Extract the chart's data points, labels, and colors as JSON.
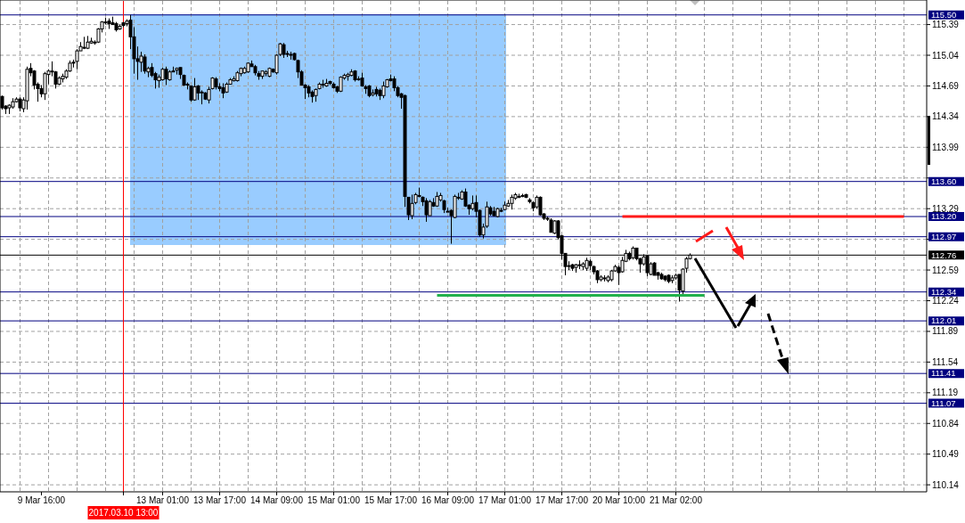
{
  "chart_data": {
    "type": "candlestick",
    "color": "#000000",
    "categories": [
      null,
      null,
      null,
      null,
      null,
      null,
      null,
      null,
      null,
      null,
      null,
      "9 Mar 16:00",
      null,
      null,
      null,
      null,
      null,
      null,
      null,
      null,
      null,
      null,
      null,
      null,
      null,
      null,
      null,
      null,
      null,
      null,
      null,
      null,
      null,
      null,
      "2017.03.10 13:00",
      null,
      null,
      null,
      null,
      null,
      null,
      null,
      null,
      null,
      null,
      "13 Mar 01:00",
      null,
      null,
      null,
      null,
      null,
      null,
      null,
      null,
      null,
      null,
      null,
      null,
      null,
      null,
      null,
      "13 Mar 17:00",
      null,
      null,
      null,
      null,
      null,
      null,
      null,
      null,
      null,
      null,
      null,
      null,
      null,
      null,
      null,
      "14 Mar 09:00",
      null,
      null,
      null,
      null,
      null,
      null,
      null,
      null,
      null,
      null,
      null,
      null,
      null,
      null,
      null,
      "15 Mar 01:00",
      null,
      null,
      null,
      null,
      null,
      null,
      null,
      null,
      null,
      null,
      null,
      null,
      null,
      null,
      null,
      "15 Mar 17:00",
      null,
      null,
      null,
      null,
      null,
      null,
      null,
      null,
      null,
      null,
      null,
      null,
      null,
      null,
      null,
      "16 Mar 09:00",
      null,
      null,
      null,
      null,
      null,
      null,
      null,
      null,
      null,
      null,
      null,
      null,
      null,
      null,
      null,
      "17 Mar 01:00",
      null,
      null,
      null,
      null,
      null,
      null,
      null,
      null,
      null,
      null,
      null,
      null,
      null,
      null,
      null,
      "17 Mar 17:00",
      null,
      null,
      null,
      null,
      null,
      null,
      null,
      null,
      null,
      null,
      null,
      null,
      null,
      null,
      null,
      "20 Mar 10:00",
      null,
      null,
      null,
      null,
      null,
      null,
      null,
      null,
      null,
      null,
      null,
      null,
      null,
      null,
      null,
      "21 Mar 02:00",
      null,
      null,
      null,
      null,
      null,
      null,
      null,
      null,
      null,
      null,
      null,
      null,
      null,
      null,
      null,
      null,
      null,
      null,
      null,
      null,
      null,
      null,
      null,
      null,
      null,
      null,
      null,
      null,
      null,
      null,
      null,
      null,
      null,
      null,
      null,
      null,
      null,
      null,
      null,
      null,
      null,
      null,
      null,
      null,
      null,
      null,
      null,
      null,
      null,
      null,
      null,
      null,
      null,
      null,
      null,
      null,
      null,
      null,
      null,
      null,
      null,
      null,
      null,
      null,
      null,
      null,
      null,
      null,
      null,
      null
    ],
    "ohlc": [
      [
        114.57,
        114.58,
        114.42,
        114.44
      ],
      [
        114.46,
        114.47,
        114.37,
        114.43
      ],
      [
        114.44,
        114.48,
        114.37,
        114.47
      ],
      [
        114.45,
        114.55,
        114.43,
        114.51
      ],
      [
        114.51,
        114.56,
        114.5,
        114.54
      ],
      [
        114.54,
        114.56,
        114.4,
        114.44
      ],
      [
        114.43,
        114.56,
        114.39,
        114.53
      ],
      [
        114.52,
        114.91,
        114.42,
        114.88
      ],
      [
        114.89,
        114.95,
        114.8,
        114.84
      ],
      [
        114.86,
        114.87,
        114.65,
        114.7
      ],
      [
        114.71,
        114.73,
        114.51,
        114.66
      ],
      [
        114.66,
        114.7,
        114.56,
        114.6
      ],
      [
        114.6,
        114.85,
        114.53,
        114.83
      ],
      [
        114.82,
        114.88,
        114.71,
        114.86
      ],
      [
        114.86,
        114.97,
        114.8,
        114.86
      ],
      [
        114.85,
        114.86,
        114.66,
        114.71
      ],
      [
        114.71,
        114.8,
        114.7,
        114.78
      ],
      [
        114.77,
        114.83,
        114.73,
        114.8
      ],
      [
        114.79,
        114.88,
        114.77,
        114.86
      ],
      [
        114.86,
        114.98,
        114.85,
        114.95
      ],
      [
        114.96,
        114.99,
        114.9,
        114.95
      ],
      [
        114.97,
        115.11,
        114.88,
        115.09
      ],
      [
        115.09,
        115.19,
        115.09,
        115.14
      ],
      [
        115.13,
        115.25,
        115.11,
        115.13
      ],
      [
        115.12,
        115.26,
        115.11,
        115.19
      ],
      [
        115.18,
        115.24,
        115.17,
        115.2
      ],
      [
        115.19,
        115.21,
        115.16,
        115.19
      ],
      [
        115.19,
        115.35,
        115.18,
        115.34
      ],
      [
        115.34,
        115.43,
        115.3,
        115.42
      ],
      [
        115.41,
        115.47,
        115.39,
        115.42
      ],
      [
        115.43,
        115.46,
        115.34,
        115.4
      ],
      [
        115.41,
        115.48,
        115.39,
        115.39
      ],
      [
        115.4,
        115.42,
        115.31,
        115.33
      ],
      [
        115.34,
        115.39,
        115.33,
        115.37
      ],
      [
        115.41,
        115.42,
        115.36,
        115.38
      ],
      [
        115.4,
        115.45,
        115.37,
        115.43
      ],
      [
        115.44,
        115.5,
        115.11,
        115.25
      ],
      [
        115.25,
        115.36,
        114.83,
        115.0
      ],
      [
        115.0,
        115.14,
        114.76,
        114.97
      ],
      [
        114.96,
        115.08,
        114.85,
        115.03
      ],
      [
        115.02,
        115.05,
        114.83,
        114.86
      ],
      [
        114.85,
        114.91,
        114.79,
        114.89
      ],
      [
        114.9,
        114.95,
        114.79,
        114.81
      ],
      [
        114.83,
        114.85,
        114.66,
        114.76
      ],
      [
        114.75,
        114.82,
        114.67,
        114.79
      ],
      [
        114.76,
        114.9,
        114.75,
        114.88
      ],
      [
        114.88,
        114.91,
        114.7,
        114.77
      ],
      [
        114.76,
        114.87,
        114.75,
        114.85
      ],
      [
        114.86,
        114.91,
        114.85,
        114.85
      ],
      [
        114.87,
        114.9,
        114.82,
        114.89
      ],
      [
        114.9,
        114.9,
        114.77,
        114.82
      ],
      [
        114.81,
        114.82,
        114.69,
        114.7
      ],
      [
        114.71,
        114.73,
        114.65,
        114.7
      ],
      [
        114.69,
        114.69,
        114.51,
        114.53
      ],
      [
        114.53,
        114.78,
        114.52,
        114.68
      ],
      [
        114.69,
        114.7,
        114.53,
        114.61
      ],
      [
        114.62,
        114.64,
        114.48,
        114.62
      ],
      [
        114.61,
        114.62,
        114.53,
        114.54
      ],
      [
        114.53,
        114.68,
        114.49,
        114.65
      ],
      [
        114.66,
        114.79,
        114.65,
        114.78
      ],
      [
        114.77,
        114.79,
        114.65,
        114.68
      ],
      [
        114.68,
        114.72,
        114.63,
        114.66
      ],
      [
        114.67,
        114.72,
        114.55,
        114.61
      ],
      [
        114.62,
        114.73,
        114.61,
        114.71
      ],
      [
        114.71,
        114.78,
        114.71,
        114.76
      ],
      [
        114.75,
        114.8,
        114.74,
        114.77
      ],
      [
        114.75,
        114.86,
        114.74,
        114.84
      ],
      [
        114.83,
        114.9,
        114.8,
        114.89
      ],
      [
        114.84,
        114.91,
        114.83,
        114.89
      ],
      [
        114.85,
        114.96,
        114.84,
        114.95
      ],
      [
        114.94,
        114.98,
        114.91,
        114.91
      ],
      [
        114.91,
        114.93,
        114.81,
        114.84
      ],
      [
        114.83,
        114.86,
        114.76,
        114.8
      ],
      [
        114.8,
        114.86,
        114.77,
        114.86
      ],
      [
        114.83,
        114.87,
        114.8,
        114.85
      ],
      [
        114.8,
        114.9,
        114.79,
        114.89
      ],
      [
        114.88,
        114.89,
        114.84,
        114.85
      ],
      [
        114.84,
        115.05,
        114.82,
        115.04
      ],
      [
        115.05,
        115.18,
        115.03,
        115.17
      ],
      [
        115.16,
        115.18,
        115.01,
        115.05
      ],
      [
        115.06,
        115.09,
        115.02,
        115.05
      ],
      [
        115.05,
        115.08,
        114.99,
        115.05
      ],
      [
        115.06,
        115.07,
        114.98,
        114.99
      ],
      [
        114.98,
        114.99,
        114.78,
        114.85
      ],
      [
        114.85,
        114.87,
        114.7,
        114.7
      ],
      [
        114.7,
        114.71,
        114.54,
        114.67
      ],
      [
        114.68,
        114.7,
        114.56,
        114.61
      ],
      [
        114.62,
        114.64,
        114.5,
        114.57
      ],
      [
        114.58,
        114.66,
        114.51,
        114.65
      ],
      [
        114.66,
        114.73,
        114.65,
        114.71
      ],
      [
        114.7,
        114.76,
        114.67,
        114.71
      ],
      [
        114.69,
        114.77,
        114.68,
        114.72
      ],
      [
        114.74,
        114.75,
        114.7,
        114.72
      ],
      [
        114.71,
        114.73,
        114.66,
        114.67
      ],
      [
        114.68,
        114.69,
        114.61,
        114.63
      ],
      [
        114.63,
        114.8,
        114.62,
        114.79
      ],
      [
        114.78,
        114.83,
        114.76,
        114.81
      ],
      [
        114.8,
        114.84,
        114.75,
        114.82
      ],
      [
        114.81,
        114.88,
        114.8,
        114.85
      ],
      [
        114.86,
        114.87,
        114.74,
        114.76
      ],
      [
        114.77,
        114.8,
        114.75,
        114.77
      ],
      [
        114.78,
        114.84,
        114.68,
        114.69
      ],
      [
        114.68,
        114.7,
        114.6,
        114.66
      ],
      [
        114.69,
        114.7,
        114.56,
        114.58
      ],
      [
        114.59,
        114.65,
        114.57,
        114.61
      ],
      [
        114.65,
        114.68,
        114.57,
        114.6
      ],
      [
        114.64,
        114.66,
        114.53,
        114.58
      ],
      [
        114.58,
        114.74,
        114.55,
        114.69
      ],
      [
        114.68,
        114.77,
        114.67,
        114.76
      ],
      [
        114.77,
        114.82,
        114.74,
        114.75
      ],
      [
        114.77,
        114.8,
        114.63,
        114.67
      ],
      [
        114.67,
        114.69,
        114.56,
        114.58
      ],
      [
        114.6,
        114.61,
        114.43,
        114.56
      ],
      [
        114.58,
        114.59,
        113.31,
        113.43
      ],
      [
        113.42,
        113.42,
        113.16,
        113.22
      ],
      [
        113.21,
        113.45,
        113.17,
        113.35
      ],
      [
        113.36,
        113.47,
        113.34,
        113.45
      ],
      [
        113.44,
        113.53,
        113.42,
        113.44
      ],
      [
        113.42,
        113.43,
        113.32,
        113.37
      ],
      [
        113.38,
        113.41,
        113.14,
        113.22
      ],
      [
        113.21,
        113.39,
        113.21,
        113.37
      ],
      [
        113.36,
        113.41,
        113.31,
        113.32
      ],
      [
        113.32,
        113.48,
        113.31,
        113.43
      ],
      [
        113.39,
        113.47,
        113.37,
        113.44
      ],
      [
        113.38,
        113.39,
        113.24,
        113.28
      ],
      [
        113.26,
        113.3,
        113.25,
        113.26
      ],
      [
        113.27,
        113.28,
        112.89,
        113.21
      ],
      [
        113.19,
        113.45,
        113.18,
        113.43
      ],
      [
        113.42,
        113.47,
        113.39,
        113.42
      ],
      [
        113.4,
        113.5,
        113.39,
        113.48
      ],
      [
        113.48,
        113.52,
        113.31,
        113.32
      ],
      [
        113.33,
        113.34,
        113.22,
        113.29
      ],
      [
        113.29,
        113.44,
        113.27,
        113.35
      ],
      [
        113.36,
        113.44,
        113.19,
        113.26
      ],
      [
        113.27,
        113.28,
        112.97,
        112.99
      ],
      [
        112.99,
        113.12,
        112.95,
        113.08
      ],
      [
        113.09,
        113.37,
        113.07,
        113.31
      ],
      [
        113.3,
        113.32,
        113.21,
        113.23
      ],
      [
        113.26,
        113.31,
        113.2,
        113.21
      ],
      [
        113.2,
        113.3,
        113.19,
        113.29
      ],
      [
        113.27,
        113.3,
        113.25,
        113.27
      ],
      [
        113.28,
        113.37,
        113.27,
        113.33
      ],
      [
        113.32,
        113.39,
        113.31,
        113.35
      ],
      [
        113.35,
        113.45,
        113.28,
        113.42
      ],
      [
        113.41,
        113.47,
        113.39,
        113.45
      ],
      [
        113.43,
        113.46,
        113.41,
        113.43
      ],
      [
        113.44,
        113.46,
        113.42,
        113.44
      ],
      [
        113.45,
        113.46,
        113.41,
        113.42
      ],
      [
        113.39,
        113.41,
        113.35,
        113.37
      ],
      [
        113.36,
        113.37,
        113.26,
        113.3
      ],
      [
        113.31,
        113.44,
        113.29,
        113.42
      ],
      [
        113.42,
        113.43,
        113.21,
        113.22
      ],
      [
        113.23,
        113.24,
        113.16,
        113.18
      ],
      [
        113.18,
        113.2,
        113.15,
        113.18
      ],
      [
        113.16,
        113.18,
        113.02,
        113.02
      ],
      [
        113.01,
        113.16,
        113.0,
        113.15
      ],
      [
        113.15,
        113.16,
        112.94,
        112.96
      ],
      [
        112.98,
        112.99,
        112.71,
        112.78
      ],
      [
        112.78,
        112.78,
        112.53,
        112.63
      ],
      [
        112.64,
        112.69,
        112.59,
        112.64
      ],
      [
        112.65,
        112.66,
        112.58,
        112.61
      ],
      [
        112.62,
        112.66,
        112.56,
        112.65
      ],
      [
        112.65,
        112.7,
        112.6,
        112.65
      ],
      [
        112.63,
        112.68,
        112.59,
        112.66
      ],
      [
        112.61,
        112.73,
        112.58,
        112.7
      ],
      [
        112.69,
        112.71,
        112.59,
        112.64
      ],
      [
        112.63,
        112.64,
        112.54,
        112.57
      ],
      [
        112.58,
        112.59,
        112.44,
        112.48
      ],
      [
        112.48,
        112.53,
        112.46,
        112.51
      ],
      [
        112.5,
        112.53,
        112.46,
        112.5
      ],
      [
        112.47,
        112.53,
        112.45,
        112.51
      ],
      [
        112.48,
        112.59,
        112.46,
        112.58
      ],
      [
        112.58,
        112.65,
        112.57,
        112.63
      ],
      [
        112.62,
        112.64,
        112.42,
        112.56
      ],
      [
        112.57,
        112.74,
        112.56,
        112.7
      ],
      [
        112.69,
        112.82,
        112.68,
        112.78
      ],
      [
        112.78,
        112.8,
        112.7,
        112.72
      ],
      [
        112.73,
        112.86,
        112.71,
        112.84
      ],
      [
        112.84,
        112.84,
        112.7,
        112.72
      ],
      [
        112.72,
        112.73,
        112.56,
        112.66
      ],
      [
        112.66,
        112.77,
        112.64,
        112.74
      ],
      [
        112.75,
        112.76,
        112.52,
        112.56
      ],
      [
        112.54,
        112.68,
        112.53,
        112.66
      ],
      [
        112.67,
        112.68,
        112.53,
        112.53
      ],
      [
        112.56,
        112.57,
        112.48,
        112.53
      ],
      [
        112.54,
        112.56,
        112.48,
        112.49
      ],
      [
        112.52,
        112.53,
        112.46,
        112.48
      ],
      [
        112.53,
        112.54,
        112.44,
        112.46
      ],
      [
        112.47,
        112.53,
        112.44,
        112.5
      ],
      [
        112.5,
        112.55,
        112.48,
        112.53
      ],
      [
        112.54,
        112.54,
        112.23,
        112.36
      ],
      [
        112.35,
        112.61,
        112.31,
        112.6
      ],
      [
        112.61,
        112.74,
        112.56,
        112.72
      ],
      [
        112.72,
        112.78,
        112.71,
        112.76
      ],
      null,
      null,
      null,
      null,
      null,
      null,
      null,
      null,
      null,
      null,
      null,
      null,
      null,
      null,
      null,
      null,
      null,
      null,
      null,
      null,
      null,
      null,
      null,
      null,
      null,
      null,
      null,
      null,
      null,
      null,
      null,
      null,
      null,
      null,
      null,
      null,
      null,
      null,
      null,
      null,
      null,
      null,
      null,
      null,
      null,
      null,
      null,
      null,
      null,
      null,
      null,
      null,
      null,
      null,
      null,
      null,
      null,
      null,
      null,
      null,
      null,
      null,
      null,
      null,
      null,
      null
    ],
    "series": [
      {
        "type": "line",
        "color": "#ff1a1a",
        "values": [
          null,
          null,
          null,
          null,
          null,
          null,
          null,
          null,
          null,
          null,
          null,
          null,
          null,
          null,
          null,
          null,
          null,
          null,
          null,
          null,
          null,
          null,
          null,
          null,
          null,
          null,
          null,
          null,
          null,
          null,
          null,
          null,
          null,
          null,
          null,
          null,
          null,
          null,
          null,
          null,
          null,
          null,
          null,
          null,
          null,
          null,
          null,
          null,
          null,
          null,
          null,
          null,
          null,
          null,
          null,
          null,
          null,
          null,
          null,
          null,
          null,
          null,
          null,
          null,
          null,
          null,
          null,
          null,
          null,
          null,
          null,
          null,
          null,
          null,
          null,
          null,
          null,
          null,
          null,
          null,
          null,
          null,
          null,
          null,
          null,
          null,
          null,
          null,
          null,
          null,
          null,
          null,
          null,
          null,
          null,
          null,
          null,
          null,
          null,
          null,
          null,
          null,
          null,
          null,
          null,
          null,
          null,
          null,
          null,
          null,
          null,
          null,
          null,
          null,
          null,
          null,
          null,
          null,
          null,
          null,
          null,
          null,
          null,
          null,
          null,
          null,
          null,
          null,
          null,
          null,
          null,
          null,
          null,
          null,
          null,
          null,
          null,
          null,
          null,
          null,
          null,
          null,
          null,
          null,
          null,
          null,
          null,
          null,
          null,
          null,
          null,
          null,
          null,
          null,
          null,
          null,
          null,
          null,
          null,
          null,
          null,
          null,
          null,
          null,
          null,
          null,
          null,
          null,
          null,
          null,
          null,
          null,
          null,
          null,
          113.2,
          113.2,
          113.2,
          113.2,
          113.2,
          113.2,
          113.2,
          113.2,
          113.2,
          113.2,
          113.2,
          113.2,
          113.2,
          113.2,
          113.2,
          113.2,
          113.2,
          113.2,
          113.2,
          113.2,
          113.2,
          113.2,
          113.2,
          113.2,
          113.2,
          113.2,
          113.2,
          113.2,
          113.2,
          113.2,
          113.2,
          113.2,
          113.2,
          113.2,
          113.2,
          113.2,
          113.2,
          113.2,
          113.2,
          113.2,
          113.2,
          113.2,
          113.2,
          113.2,
          113.2,
          113.2,
          113.2,
          113.2,
          113.2,
          113.2,
          113.2,
          113.2,
          113.2,
          113.2,
          113.2,
          113.2,
          113.2,
          113.2,
          113.2,
          113.2,
          113.2,
          113.2,
          113.2,
          113.2,
          113.2,
          113.2,
          113.2,
          113.2,
          113.2,
          113.2,
          113.2,
          113.2,
          113.2,
          113.2,
          113.2,
          113.2,
          113.2,
          113.2,
          113.2,
          113.2,
          null,
          null,
          null,
          null,
          null,
          null
        ]
      },
      {
        "type": "line",
        "color": "#22b14c",
        "values": [
          null,
          null,
          null,
          null,
          null,
          null,
          null,
          null,
          null,
          null,
          null,
          null,
          null,
          null,
          null,
          null,
          null,
          null,
          null,
          null,
          null,
          null,
          null,
          null,
          null,
          null,
          null,
          null,
          null,
          null,
          null,
          null,
          null,
          null,
          null,
          null,
          null,
          null,
          null,
          null,
          null,
          null,
          null,
          null,
          null,
          null,
          null,
          null,
          null,
          null,
          null,
          null,
          null,
          null,
          null,
          null,
          null,
          null,
          null,
          null,
          null,
          null,
          null,
          null,
          null,
          null,
          null,
          null,
          null,
          null,
          null,
          null,
          null,
          null,
          null,
          null,
          null,
          null,
          null,
          null,
          null,
          null,
          null,
          null,
          null,
          null,
          null,
          null,
          null,
          null,
          null,
          null,
          null,
          null,
          null,
          null,
          null,
          null,
          null,
          null,
          null,
          null,
          null,
          null,
          null,
          null,
          null,
          null,
          null,
          null,
          null,
          null,
          null,
          null,
          null,
          null,
          null,
          null,
          null,
          null,
          null,
          null,
          112.3,
          112.3,
          112.3,
          112.3,
          112.3,
          112.3,
          112.3,
          112.3,
          112.3,
          112.3,
          112.3,
          112.3,
          112.3,
          112.3,
          112.3,
          112.3,
          112.3,
          112.3,
          112.3,
          112.3,
          112.3,
          112.3,
          112.3,
          112.3,
          112.3,
          112.3,
          112.3,
          112.3,
          112.3,
          112.3,
          112.3,
          112.3,
          112.3,
          112.3,
          112.3,
          112.3,
          112.3,
          112.3,
          112.3,
          112.3,
          112.3,
          112.3,
          112.3,
          112.3,
          112.3,
          112.3,
          112.3,
          112.3,
          112.3,
          112.3,
          112.3,
          112.3,
          112.3,
          112.3,
          112.3,
          112.3,
          112.3,
          112.3,
          112.3,
          112.3,
          112.3,
          112.3,
          112.3,
          112.3,
          112.3,
          112.3,
          112.3,
          112.3,
          112.3,
          112.3,
          112.3,
          112.3,
          112.3,
          112.3,
          112.3,
          112.3,
          null,
          null,
          null,
          null,
          null,
          null,
          null,
          null,
          null,
          null,
          null,
          null,
          null,
          null,
          null,
          null,
          null,
          null,
          null,
          null,
          null,
          null,
          null,
          null,
          null,
          null,
          null,
          null,
          null,
          null,
          null,
          null,
          null,
          null,
          null,
          null,
          null,
          null,
          null,
          null,
          null,
          null,
          null,
          null,
          null,
          null,
          null,
          null,
          null,
          null,
          null,
          null,
          null,
          null,
          null,
          null,
          null,
          null,
          null,
          null,
          null,
          null
        ]
      }
    ],
    "ylim": [
      110.06,
      115.66
    ],
    "yticks": [
      115.39,
      115.04,
      114.69,
      114.34,
      113.99,
      {
        "value": 113.64,
        "label": null
      },
      113.29,
      {
        "value": 112.94,
        "label": null
      },
      112.59,
      112.24,
      111.89,
      111.54,
      111.19,
      110.84,
      110.49,
      110.14
    ],
    "ref_lines": [
      {
        "axis": "y",
        "value": 115.5,
        "label": "115.50",
        "color": "#000080"
      },
      {
        "axis": "y",
        "value": 113.6,
        "label": "113.60",
        "color": "#000080"
      },
      {
        "axis": "y",
        "value": 113.2,
        "label": "113.20",
        "color": "#000080"
      },
      {
        "axis": "y",
        "value": 112.97,
        "label": "112.97",
        "color": "#000080"
      },
      {
        "axis": "y",
        "value": 112.76,
        "label": "112.76",
        "color": "#000000"
      },
      {
        "axis": "y",
        "value": 112.34,
        "label": "112.34",
        "color": "#000080"
      },
      {
        "axis": "y",
        "value": 112.01,
        "label": "112.01",
        "color": "#000080"
      },
      {
        "axis": "y",
        "value": 111.41,
        "label": "111.41",
        "color": "#000080"
      },
      {
        "axis": "y",
        "value": 111.07,
        "label": "111.07",
        "color": "#000080"
      },
      {
        "axis": "x",
        "value": "2017.03.10 13:00",
        "color": "#ff0000"
      }
    ],
    "grid": true
  }
}
